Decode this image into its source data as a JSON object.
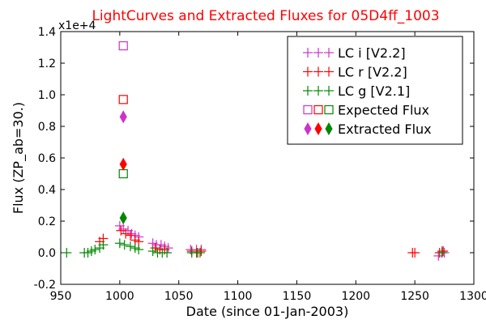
{
  "chart_data": {
    "type": "scatter",
    "title": "LightCurves and Extracted Fluxes for 05D4ff_1003",
    "xlabel": "Date (since 01-Jan-2003)",
    "ylabel": "Flux (ZP_ab=30.)",
    "y_offset_label": "x1e+4",
    "xlim": [
      950,
      1300
    ],
    "ylim": [
      -0.2,
      1.4
    ],
    "x_ticks": [
      "950",
      "1000",
      "1050",
      "1100",
      "1150",
      "1200",
      "1250",
      "1300"
    ],
    "y_ticks": [
      "-0.2",
      "0.0",
      "0.2",
      "0.4",
      "0.6",
      "0.8",
      "1.0",
      "1.2",
      "1.4"
    ],
    "legend_position": "top-right",
    "grid": false,
    "series": [
      {
        "name": "LC i [V2.2]",
        "marker": "plus",
        "color": "#cc33cc",
        "points": [
          [
            1000,
            0.17
          ],
          [
            1003,
            0.15
          ],
          [
            1007,
            0.14
          ],
          [
            1010,
            0.12
          ],
          [
            1013,
            0.11
          ],
          [
            1016,
            0.1
          ],
          [
            1028,
            0.06
          ],
          [
            1031,
            0.05
          ],
          [
            1035,
            0.05
          ],
          [
            1038,
            0.04
          ],
          [
            1041,
            0.03
          ],
          [
            1060,
            0.02
          ],
          [
            1065,
            0.02
          ],
          [
            1069,
            0.02
          ],
          [
            1270,
            -0.02
          ],
          [
            1273,
            0.01
          ],
          [
            1275,
            0.0
          ]
        ]
      },
      {
        "name": "LC r [V2.2]",
        "marker": "plus",
        "color": "#ff0000",
        "points": [
          [
            983,
            0.07
          ],
          [
            986,
            0.09
          ],
          [
            1001,
            0.14
          ],
          [
            1005,
            0.12
          ],
          [
            1009,
            0.11
          ],
          [
            1013,
            0.08
          ],
          [
            1016,
            0.07
          ],
          [
            1030,
            0.03
          ],
          [
            1034,
            0.02
          ],
          [
            1038,
            0.02
          ],
          [
            1061,
            0.01
          ],
          [
            1066,
            0.0
          ],
          [
            1069,
            0.01
          ],
          [
            1248,
            0.0
          ],
          [
            1250,
            0.0
          ],
          [
            1271,
            0.0
          ],
          [
            1274,
            0.01
          ]
        ]
      },
      {
        "name": "LC g [V2.1]",
        "marker": "plus",
        "color": "#008800",
        "points": [
          [
            955,
            0.0
          ],
          [
            970,
            0.0
          ],
          [
            973,
            0.0
          ],
          [
            976,
            0.01
          ],
          [
            979,
            0.02
          ],
          [
            983,
            0.03
          ],
          [
            986,
            0.05
          ],
          [
            1000,
            0.06
          ],
          [
            1004,
            0.05
          ],
          [
            1009,
            0.04
          ],
          [
            1013,
            0.03
          ],
          [
            1016,
            0.02
          ],
          [
            1028,
            0.01
          ],
          [
            1032,
            0.0
          ],
          [
            1036,
            0.0
          ],
          [
            1040,
            0.0
          ],
          [
            1061,
            0.0
          ],
          [
            1065,
            0.0
          ],
          [
            1068,
            0.0
          ],
          [
            1273,
            0.0
          ]
        ]
      },
      {
        "name": "Expected Flux",
        "marker": "square",
        "colors": [
          "#cc33cc",
          "#ff0000",
          "#008800"
        ],
        "points": [
          [
            1003,
            1.31,
            "#cc33cc"
          ],
          [
            1003,
            0.97,
            "#ff0000"
          ],
          [
            1003,
            0.5,
            "#008800"
          ]
        ]
      },
      {
        "name": "Extracted Flux",
        "marker": "diamond",
        "colors": [
          "#cc33cc",
          "#ff0000",
          "#008800"
        ],
        "points": [
          [
            1003,
            0.86,
            "#cc33cc"
          ],
          [
            1003,
            0.56,
            "#ff0000"
          ],
          [
            1003,
            0.22,
            "#008800"
          ]
        ]
      }
    ]
  }
}
